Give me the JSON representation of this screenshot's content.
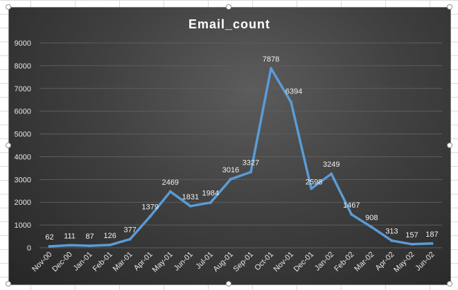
{
  "chart_data": {
    "type": "line",
    "title": "Email_count",
    "xlabel": "",
    "ylabel": "",
    "ylim": [
      0,
      9000
    ],
    "yticks": [
      0,
      1000,
      2000,
      3000,
      4000,
      5000,
      6000,
      7000,
      8000,
      9000
    ],
    "grid": true,
    "legend": "none",
    "categories": [
      "Nov-00",
      "Dec-00",
      "Jan-01",
      "Feb-01",
      "Mar-01",
      "Apr-01",
      "May-01",
      "Jun-01",
      "Jul-01",
      "Aug-01",
      "Sep-01",
      "Oct-01",
      "Nov-01",
      "Dec-01",
      "Jan-02",
      "Feb-02",
      "Mar-02",
      "Apr-02",
      "May-02",
      "Jun-02"
    ],
    "series": [
      {
        "values": [
          62,
          111,
          87,
          126,
          377,
          1379,
          2469,
          1831,
          1984,
          3016,
          3327,
          7878,
          6394,
          2598,
          3249,
          1467,
          908,
          313,
          157,
          187
        ]
      }
    ],
    "line_color": "#5b9bd5"
  }
}
